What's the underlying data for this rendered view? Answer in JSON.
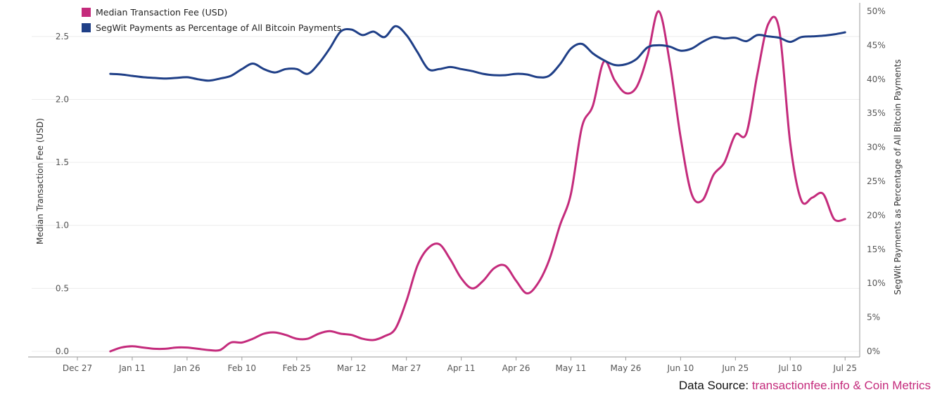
{
  "chart_data": {
    "type": "line",
    "x_dates": [
      "2019-01-05",
      "2019-01-08",
      "2019-01-11",
      "2019-01-14",
      "2019-01-17",
      "2019-01-20",
      "2019-01-23",
      "2019-01-26",
      "2019-01-29",
      "2019-02-01",
      "2019-02-04",
      "2019-02-07",
      "2019-02-10",
      "2019-02-13",
      "2019-02-16",
      "2019-02-19",
      "2019-02-22",
      "2019-02-25",
      "2019-02-28",
      "2019-03-03",
      "2019-03-06",
      "2019-03-09",
      "2019-03-12",
      "2019-03-15",
      "2019-03-18",
      "2019-03-21",
      "2019-03-24",
      "2019-03-27",
      "2019-03-30",
      "2019-04-02",
      "2019-04-05",
      "2019-04-08",
      "2019-04-11",
      "2019-04-14",
      "2019-04-17",
      "2019-04-20",
      "2019-04-23",
      "2019-04-26",
      "2019-04-29",
      "2019-05-02",
      "2019-05-05",
      "2019-05-08",
      "2019-05-11",
      "2019-05-14",
      "2019-05-17",
      "2019-05-20",
      "2019-05-23",
      "2019-05-26",
      "2019-05-29",
      "2019-06-01",
      "2019-06-04",
      "2019-06-07",
      "2019-06-10",
      "2019-06-13",
      "2019-06-16",
      "2019-06-19",
      "2019-06-22",
      "2019-06-25",
      "2019-06-28",
      "2019-07-01",
      "2019-07-04",
      "2019-07-07",
      "2019-07-10",
      "2019-07-13",
      "2019-07-16",
      "2019-07-19",
      "2019-07-22",
      "2019-07-25"
    ],
    "series": [
      {
        "name": "Median Transaction Fee (USD)",
        "axis": "left",
        "color": "#c42b7c",
        "values": [
          0.0,
          0.03,
          0.04,
          0.03,
          0.02,
          0.02,
          0.03,
          0.03,
          0.02,
          0.01,
          0.01,
          0.07,
          0.07,
          0.1,
          0.14,
          0.15,
          0.13,
          0.1,
          0.1,
          0.14,
          0.16,
          0.14,
          0.13,
          0.1,
          0.09,
          0.12,
          0.18,
          0.4,
          0.68,
          0.82,
          0.85,
          0.73,
          0.58,
          0.5,
          0.56,
          0.66,
          0.68,
          0.56,
          0.46,
          0.54,
          0.72,
          1.0,
          1.25,
          1.78,
          1.95,
          2.3,
          2.15,
          2.05,
          2.1,
          2.35,
          2.7,
          2.3,
          1.7,
          1.25,
          1.2,
          1.4,
          1.5,
          1.72,
          1.73,
          2.2,
          2.6,
          2.55,
          1.65,
          1.2,
          1.22,
          1.25,
          1.05,
          1.05
        ]
      },
      {
        "name": "SegWit Payments as Percentage of All Bitcoin Payments",
        "axis": "right",
        "color": "#1f3f87",
        "values": [
          40.8,
          40.7,
          40.5,
          40.3,
          40.2,
          40.1,
          40.2,
          40.3,
          40.0,
          39.8,
          40.1,
          40.5,
          41.5,
          42.3,
          41.5,
          41.0,
          41.5,
          41.5,
          40.8,
          42.3,
          44.5,
          47.0,
          47.3,
          46.5,
          47.0,
          46.2,
          47.8,
          46.5,
          44.0,
          41.5,
          41.5,
          41.8,
          41.5,
          41.2,
          40.8,
          40.6,
          40.6,
          40.8,
          40.7,
          40.3,
          40.5,
          42.2,
          44.5,
          45.2,
          43.8,
          42.8,
          42.1,
          42.2,
          43.0,
          44.7,
          45.0,
          44.8,
          44.2,
          44.5,
          45.5,
          46.2,
          46.0,
          46.1,
          45.6,
          46.5,
          46.3,
          46.1,
          45.5,
          46.2,
          46.3,
          46.4,
          46.6,
          46.9
        ]
      }
    ],
    "left_axis": {
      "title": "Median Transaction Fee (USD)",
      "ylim": [
        0,
        2.7
      ],
      "ticks": [
        "0.0",
        "0.5",
        "1.0",
        "1.5",
        "2.0",
        "2.5"
      ]
    },
    "right_axis": {
      "title": "SegWit Payments as Percentage of All Bitcoin Payments",
      "ylim": [
        0,
        50
      ],
      "ticks": [
        "0%",
        "5%",
        "10%",
        "15%",
        "20%",
        "25%",
        "30%",
        "35%",
        "40%",
        "45%",
        "50%"
      ]
    },
    "x_axis": {
      "range": [
        "2018-12-27",
        "2019-07-29"
      ],
      "ticks": [
        {
          "date": "2018-12-27",
          "label": "Dec 27"
        },
        {
          "date": "2019-01-11",
          "label": "Jan 11"
        },
        {
          "date": "2019-01-26",
          "label": "Jan 26"
        },
        {
          "date": "2019-02-10",
          "label": "Feb 10"
        },
        {
          "date": "2019-02-25",
          "label": "Feb 25"
        },
        {
          "date": "2019-03-12",
          "label": "Mar 12"
        },
        {
          "date": "2019-03-27",
          "label": "Mar 27"
        },
        {
          "date": "2019-04-11",
          "label": "Apr 11"
        },
        {
          "date": "2019-04-26",
          "label": "Apr 26"
        },
        {
          "date": "2019-05-11",
          "label": "May 11"
        },
        {
          "date": "2019-05-26",
          "label": "May 26"
        },
        {
          "date": "2019-06-10",
          "label": "Jun 10"
        },
        {
          "date": "2019-06-25",
          "label": "Jun 25"
        },
        {
          "date": "2019-07-10",
          "label": "Jul 10"
        },
        {
          "date": "2019-07-25",
          "label": "Jul 25"
        }
      ]
    },
    "legend": {
      "placement": "top-left",
      "entries": [
        "Median Transaction Fee (USD)",
        "SegWit Payments as Percentage of All Bitcoin Payments"
      ]
    },
    "grid": true
  },
  "source": {
    "prefix": "Data Source: ",
    "text": "transactionfee.info & Coin Metrics"
  }
}
